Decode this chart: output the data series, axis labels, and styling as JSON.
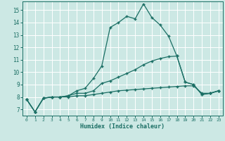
{
  "xlabel": "Humidex (Indice chaleur)",
  "background_color": "#cce8e4",
  "grid_color": "#ffffff",
  "line_color": "#1a6e64",
  "xlim": [
    -0.5,
    23.5
  ],
  "ylim": [
    6.5,
    15.7
  ],
  "xticks": [
    0,
    1,
    2,
    3,
    4,
    5,
    6,
    7,
    8,
    9,
    10,
    11,
    12,
    13,
    14,
    15,
    16,
    17,
    18,
    19,
    20,
    21,
    22,
    23
  ],
  "yticks": [
    7,
    8,
    9,
    10,
    11,
    12,
    13,
    14,
    15
  ],
  "line1_x": [
    0,
    1,
    2,
    3,
    4,
    5,
    6,
    7,
    8,
    9,
    10,
    11,
    12,
    13,
    14,
    15,
    16,
    17,
    18,
    19,
    20,
    21,
    22,
    23
  ],
  "line1_y": [
    7.8,
    6.8,
    7.9,
    8.0,
    8.0,
    8.1,
    8.5,
    8.7,
    9.5,
    10.5,
    13.6,
    14.0,
    14.5,
    14.3,
    15.5,
    14.4,
    13.8,
    12.9,
    11.3,
    9.2,
    9.0,
    8.2,
    8.3,
    8.5
  ],
  "line2_x": [
    0,
    1,
    2,
    3,
    4,
    5,
    6,
    7,
    8,
    9,
    10,
    11,
    12,
    13,
    14,
    15,
    16,
    17,
    18,
    19,
    20,
    21,
    22,
    23
  ],
  "line2_y": [
    7.8,
    6.8,
    7.9,
    8.0,
    8.0,
    8.1,
    8.3,
    8.3,
    8.5,
    9.1,
    9.3,
    9.6,
    9.9,
    10.2,
    10.6,
    10.9,
    11.1,
    11.25,
    11.3,
    9.2,
    9.0,
    8.2,
    8.3,
    8.5
  ],
  "line3_x": [
    0,
    1,
    2,
    3,
    4,
    5,
    6,
    7,
    8,
    9,
    10,
    11,
    12,
    13,
    14,
    15,
    16,
    17,
    18,
    19,
    20,
    21,
    22,
    23
  ],
  "line3_y": [
    7.8,
    6.8,
    7.9,
    8.0,
    8.0,
    8.0,
    8.1,
    8.1,
    8.2,
    8.3,
    8.4,
    8.5,
    8.55,
    8.6,
    8.65,
    8.7,
    8.75,
    8.8,
    8.85,
    8.9,
    8.9,
    8.3,
    8.3,
    8.5
  ]
}
